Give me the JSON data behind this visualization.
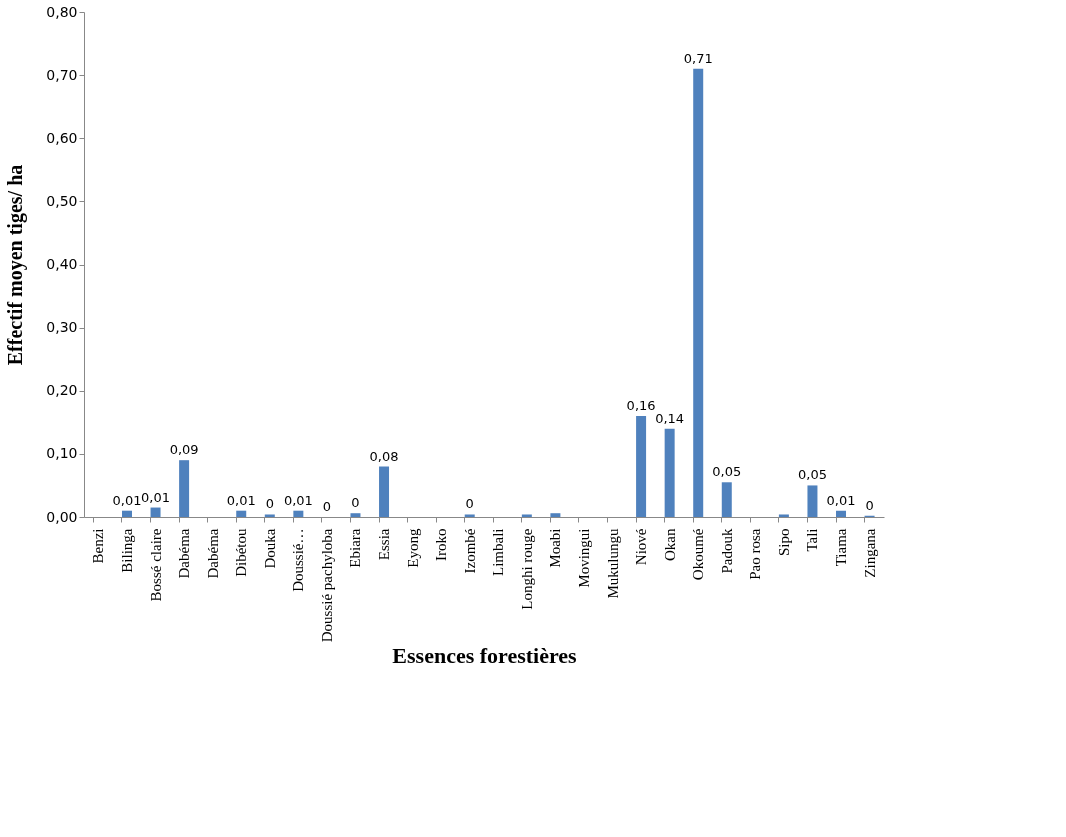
{
  "chart_data": {
    "type": "bar",
    "xlabel": "Essences forestières",
    "ylabel": "Effectif moyen tiges/ ha",
    "categories": [
      "Benzi",
      "Bilinga",
      "Bossé claire",
      "Dabéma",
      "Dabéma",
      "Dibétou",
      "Douka",
      "Doussié…",
      "Doussié pachyloba",
      "Ebiara",
      "Essia",
      "Eyong",
      "Iroko",
      "Izombé",
      "Limbali",
      "Longhi rouge",
      "Moabi",
      "Movingui",
      "Mukulungu",
      "Niové",
      "Okan",
      "Okoumé",
      "Padouk",
      "Pao rosa",
      "Sipo",
      "Tali",
      "Tiama",
      "Zingana"
    ],
    "values": [
      0,
      0.01,
      0.015,
      0.09,
      0,
      0.01,
      0.004,
      0.01,
      0,
      0.006,
      0.08,
      0,
      0,
      0.004,
      0,
      0.004,
      0.006,
      0,
      0,
      0.16,
      0.14,
      0.71,
      0.055,
      0,
      0.004,
      0.05,
      0.01,
      0.002
    ],
    "value_labels": [
      null,
      "0,01",
      "0,01",
      "0,09",
      null,
      "0,01",
      "0",
      "0,01",
      "0",
      "0",
      "0,08",
      null,
      null,
      "0",
      null,
      null,
      null,
      null,
      null,
      "0,16",
      "0,14",
      "0,71",
      "0,05",
      null,
      null,
      "0,05",
      "0,01",
      "0"
    ],
    "color": "#4f81bd",
    "ylim": [
      0,
      0.8
    ],
    "yticks": [
      {
        "value": 0,
        "label": "0,00"
      },
      {
        "value": 0.1,
        "label": "0,10"
      },
      {
        "value": 0.2,
        "label": "0,20"
      },
      {
        "value": 0.3,
        "label": "0,30"
      },
      {
        "value": 0.4,
        "label": "0,40"
      },
      {
        "value": 0.5,
        "label": "0,50"
      },
      {
        "value": 0.6,
        "label": "0,60"
      },
      {
        "value": 0.7,
        "label": "0,70"
      },
      {
        "value": 0.8,
        "label": "0,80"
      }
    ],
    "grid": false
  }
}
